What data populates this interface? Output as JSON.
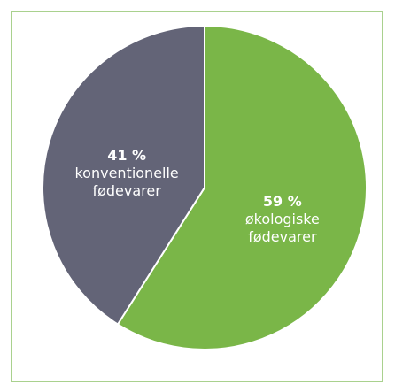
{
  "chart_data": {
    "type": "pie",
    "categories": [
      "økologiske fødevarer",
      "konventionelle fødevarer"
    ],
    "values": [
      59,
      41
    ],
    "value_labels": [
      "59 %",
      "41 %"
    ],
    "colors": [
      "#7ab648",
      "#636477"
    ]
  }
}
